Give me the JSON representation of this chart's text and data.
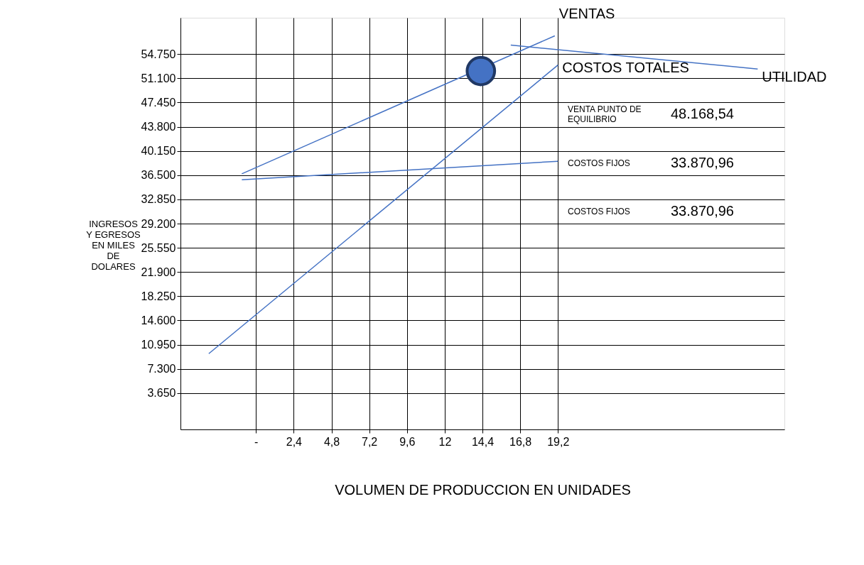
{
  "chart_data": {
    "type": "line",
    "xlabel": "VOLUMEN DE PRODUCCION EN UNIDADES",
    "ylabel": "INGRESOS Y EGRESOS EN MILES DE DOLARES",
    "xlim": [
      -4.8,
      33.6
    ],
    "ylim": [
      -1825,
      60225
    ],
    "xticks": [
      {
        "value": 0,
        "label": "-"
      },
      {
        "value": 2.4,
        "label": "2,4"
      },
      {
        "value": 4.8,
        "label": "4,8"
      },
      {
        "value": 7.2,
        "label": "7,2"
      },
      {
        "value": 9.6,
        "label": "9,6"
      },
      {
        "value": 12,
        "label": "12"
      },
      {
        "value": 14.4,
        "label": "14,4"
      },
      {
        "value": 16.8,
        "label": "16,8"
      },
      {
        "value": 19.2,
        "label": "19,2"
      }
    ],
    "yticks": [
      {
        "value": 3650,
        "label": "3.650"
      },
      {
        "value": 7300,
        "label": "7.300"
      },
      {
        "value": 10950,
        "label": "10.950"
      },
      {
        "value": 14600,
        "label": "14.600"
      },
      {
        "value": 18250,
        "label": "18.250"
      },
      {
        "value": 21900,
        "label": "21.900"
      },
      {
        "value": 25550,
        "label": "25.550"
      },
      {
        "value": 29200,
        "label": "29.200"
      },
      {
        "value": 32850,
        "label": "32.850"
      },
      {
        "value": 36500,
        "label": "36.500"
      },
      {
        "value": 40150,
        "label": "40.150"
      },
      {
        "value": 43800,
        "label": "43.800"
      },
      {
        "value": 47450,
        "label": "47.450"
      },
      {
        "value": 51100,
        "label": "51.100"
      },
      {
        "value": 54750,
        "label": "54.750"
      }
    ],
    "grid": true,
    "marker": "none",
    "line_style": "solid",
    "series": [
      {
        "name": "VENTAS",
        "color": "#4472c4",
        "x": [
          -0.9,
          19.0
        ],
        "values": [
          36700,
          57500
        ]
      },
      {
        "color": "#4472c4",
        "x": [
          -0.9,
          19.2
        ],
        "values": [
          35800,
          38600
        ]
      },
      {
        "name": "COSTOS TOTALES",
        "color": "#4472c4",
        "x": [
          -3.0,
          19.2
        ],
        "values": [
          9600,
          53100
        ]
      },
      {
        "name": "UTILIDAD",
        "color": "#4472c4",
        "x": [
          16.2,
          31.9
        ],
        "values": [
          56100,
          52500
        ]
      },
      {
        "type": "scatter",
        "marker": "circle",
        "color": "#4472c4",
        "x": [
          14.3
        ],
        "values": [
          52200
        ]
      }
    ],
    "annotations": [
      "VENTA PUNTO DE EQUILIBRIO",
      "48.168,54",
      "COSTOS FIJOS",
      "33.870,96",
      "COSTOS FIJOS",
      "33.870,96"
    ]
  }
}
